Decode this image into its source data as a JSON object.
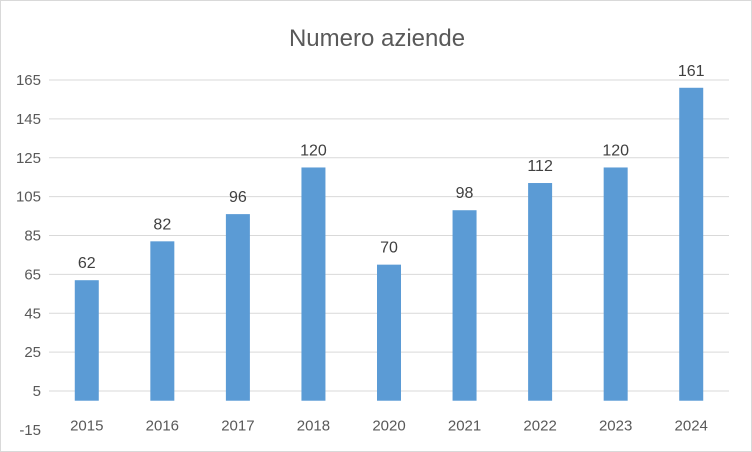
{
  "chart_data": {
    "type": "bar",
    "title": "Numero aziende",
    "xlabel": "",
    "ylabel": "",
    "categories": [
      "2015",
      "2016",
      "2017",
      "2018",
      "2020",
      "2021",
      "2022",
      "2023",
      "2024"
    ],
    "values": [
      62,
      82,
      96,
      120,
      70,
      98,
      112,
      120,
      161
    ],
    "ylim": [
      -15,
      165
    ],
    "yticks": [
      -15,
      5,
      25,
      45,
      65,
      85,
      105,
      125,
      145,
      165
    ],
    "grid": true,
    "legend": "none",
    "colors": {
      "bar": "#5b9bd5",
      "grid": "#d9d9d9",
      "text": "#595959"
    }
  }
}
